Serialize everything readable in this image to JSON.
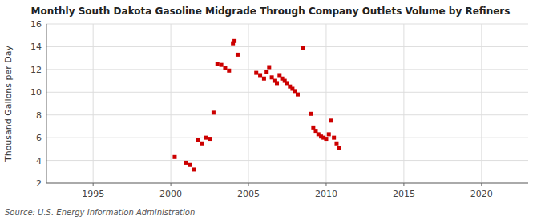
{
  "chart_data": {
    "type": "scatter",
    "title": "Monthly South Dakota Gasoline Midgrade Through Company Outlets Volume by Refiners",
    "y_label": "Thousand Gallons per Day",
    "source": "Source: U.S. Energy Information Administration",
    "color": "#cc0000",
    "marker": "square",
    "grid": true,
    "xlim": [
      1992,
      2023
    ],
    "ylim": [
      2,
      16
    ],
    "xticks": [
      1995,
      2000,
      2005,
      2010,
      2015,
      2020
    ],
    "yticks": [
      2,
      4,
      6,
      8,
      10,
      12,
      14,
      16
    ],
    "x": [
      2000.25,
      2001.0,
      2001.25,
      2001.5,
      2001.75,
      2002.0,
      2002.25,
      2002.5,
      2002.75,
      2003.0,
      2003.25,
      2003.5,
      2003.75,
      2004.0,
      2004.1,
      2004.3,
      2005.5,
      2005.75,
      2006.0,
      2006.17,
      2006.33,
      2006.5,
      2006.67,
      2006.83,
      2007.0,
      2007.17,
      2007.33,
      2007.5,
      2007.67,
      2007.83,
      2008.0,
      2008.17,
      2008.5,
      2009.0,
      2009.17,
      2009.33,
      2009.5,
      2009.67,
      2009.83,
      2010.0,
      2010.17,
      2010.33,
      2010.5,
      2010.67,
      2010.83
    ],
    "values": [
      4.3,
      3.8,
      3.6,
      3.2,
      5.8,
      5.5,
      6.0,
      5.9,
      8.2,
      12.5,
      12.4,
      12.1,
      11.9,
      14.3,
      14.5,
      13.3,
      11.7,
      11.5,
      11.2,
      11.8,
      12.2,
      11.3,
      11.0,
      10.8,
      11.5,
      11.2,
      11.0,
      10.8,
      10.5,
      10.3,
      10.1,
      9.8,
      13.9,
      8.1,
      6.9,
      6.6,
      6.3,
      6.1,
      6.0,
      5.9,
      6.3,
      7.5,
      6.0,
      5.5,
      5.1
    ]
  }
}
